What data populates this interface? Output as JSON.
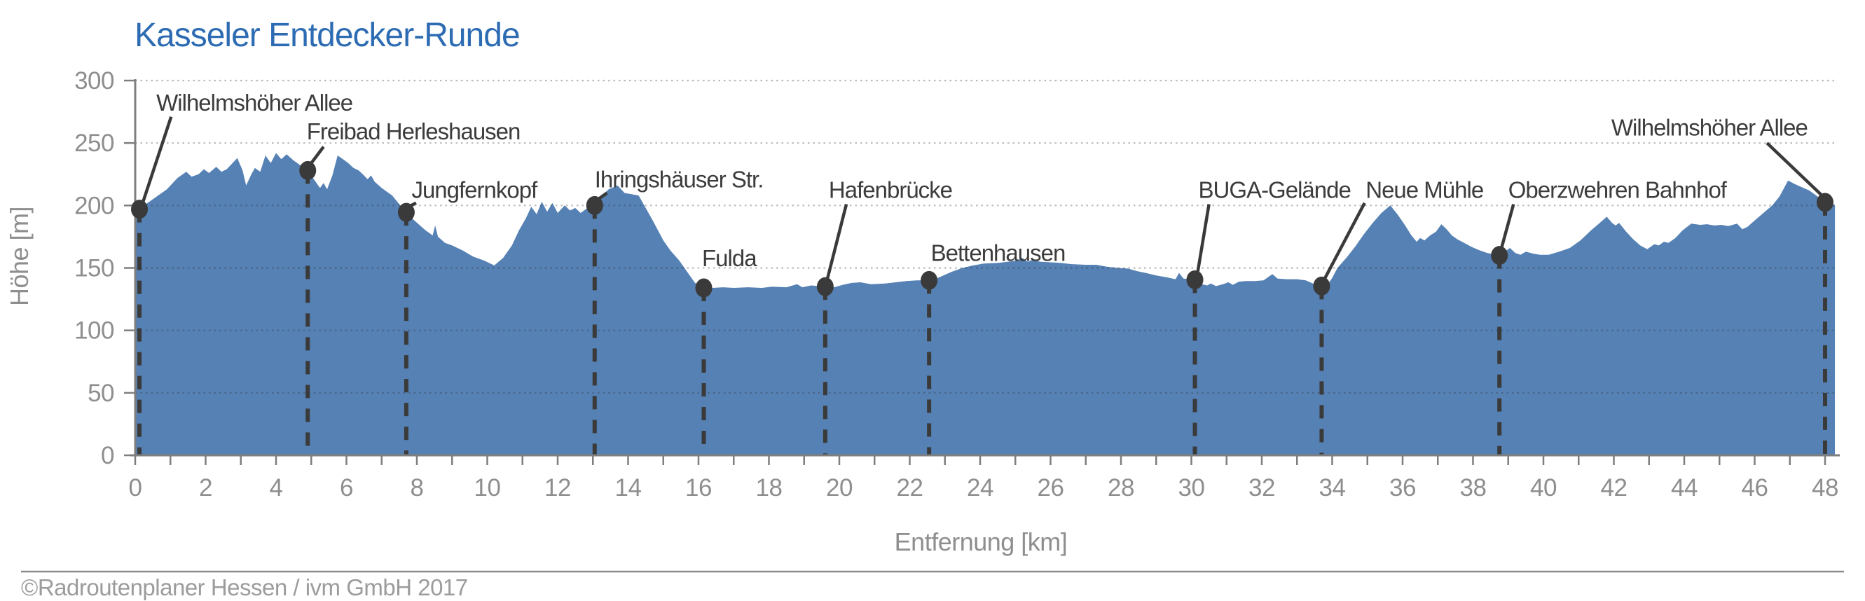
{
  "page": {
    "kind": "elevation-profile"
  },
  "footer": {
    "copyright": "©Radroutenplaner Hessen / ivm GmbH 2017"
  },
  "chart_data": {
    "type": "area",
    "title": "Kasseler Entdecker-Runde",
    "xlabel": "Entfernung [km]",
    "ylabel": "Höhe [m]",
    "xlim": [
      0,
      48.3
    ],
    "ylim": [
      0,
      300
    ],
    "x_ticks": [
      0,
      2,
      4,
      6,
      8,
      10,
      12,
      14,
      16,
      18,
      20,
      22,
      24,
      26,
      28,
      30,
      32,
      34,
      36,
      38,
      40,
      42,
      44,
      46,
      48
    ],
    "x_minor_tick_step_km": 1,
    "y_ticks": [
      0,
      50,
      100,
      150,
      200,
      250,
      300
    ],
    "grid": {
      "horizontal_dotted": true,
      "vertical": false
    },
    "legend": null,
    "colors": {
      "title": "#2d6cb3",
      "area_fill": "#5681b4",
      "annotation": "#3a3a3a",
      "axis_line": "#7e7e7e",
      "tick_label": "#8e8e8e",
      "gridline": "#b3b3b3",
      "copyright": "#9c9c9c"
    },
    "profile_km_m": [
      [
        0,
        197
      ],
      [
        0.12,
        197
      ],
      [
        0.3,
        201
      ],
      [
        0.6,
        207
      ],
      [
        0.9,
        213
      ],
      [
        1.2,
        222
      ],
      [
        1.45,
        227
      ],
      [
        1.6,
        223
      ],
      [
        1.8,
        225
      ],
      [
        1.95,
        229
      ],
      [
        2.1,
        226
      ],
      [
        2.3,
        231
      ],
      [
        2.45,
        227
      ],
      [
        2.6,
        229
      ],
      [
        2.9,
        238
      ],
      [
        3.05,
        228
      ],
      [
        3.15,
        216
      ],
      [
        3.3,
        225
      ],
      [
        3.4,
        230
      ],
      [
        3.55,
        227
      ],
      [
        3.7,
        240
      ],
      [
        3.85,
        234
      ],
      [
        4.0,
        242
      ],
      [
        4.15,
        237
      ],
      [
        4.3,
        241
      ],
      [
        4.5,
        236
      ],
      [
        4.7,
        232
      ],
      [
        4.9,
        228
      ],
      [
        5.1,
        220
      ],
      [
        5.25,
        214
      ],
      [
        5.35,
        218
      ],
      [
        5.45,
        213
      ],
      [
        5.6,
        224
      ],
      [
        5.75,
        240
      ],
      [
        5.9,
        237
      ],
      [
        6.05,
        234
      ],
      [
        6.2,
        230
      ],
      [
        6.35,
        228
      ],
      [
        6.5,
        224
      ],
      [
        6.6,
        221
      ],
      [
        6.7,
        224
      ],
      [
        6.8,
        219
      ],
      [
        7.0,
        214
      ],
      [
        7.3,
        208
      ],
      [
        7.5,
        201
      ],
      [
        7.7,
        194.5
      ],
      [
        7.85,
        190
      ],
      [
        8.05,
        185
      ],
      [
        8.25,
        180
      ],
      [
        8.45,
        176
      ],
      [
        8.52,
        184
      ],
      [
        8.6,
        175
      ],
      [
        8.8,
        170
      ],
      [
        9.0,
        168
      ],
      [
        9.3,
        164
      ],
      [
        9.6,
        159
      ],
      [
        9.9,
        156
      ],
      [
        10.2,
        152
      ],
      [
        10.45,
        158
      ],
      [
        10.7,
        168
      ],
      [
        10.9,
        180
      ],
      [
        11.1,
        190
      ],
      [
        11.25,
        199
      ],
      [
        11.4,
        193
      ],
      [
        11.55,
        203
      ],
      [
        11.7,
        195
      ],
      [
        11.85,
        202
      ],
      [
        12.0,
        194
      ],
      [
        12.2,
        200
      ],
      [
        12.35,
        196
      ],
      [
        12.5,
        198
      ],
      [
        12.65,
        194
      ],
      [
        12.85,
        198
      ],
      [
        13.05,
        200
      ],
      [
        13.25,
        208
      ],
      [
        13.45,
        213
      ],
      [
        13.7,
        216
      ],
      [
        13.9,
        210
      ],
      [
        14.1,
        209
      ],
      [
        14.3,
        208
      ],
      [
        14.5,
        198
      ],
      [
        14.7,
        188
      ],
      [
        15.0,
        172
      ],
      [
        15.2,
        164
      ],
      [
        15.45,
        156
      ],
      [
        15.7,
        146
      ],
      [
        15.9,
        138
      ],
      [
        16.15,
        134
      ],
      [
        16.4,
        134
      ],
      [
        16.7,
        134.5
      ],
      [
        17.0,
        134
      ],
      [
        17.4,
        134.5
      ],
      [
        17.8,
        134
      ],
      [
        18.1,
        135
      ],
      [
        18.5,
        134.5
      ],
      [
        18.8,
        137
      ],
      [
        18.95,
        134.5
      ],
      [
        19.2,
        136
      ],
      [
        19.6,
        135
      ],
      [
        19.85,
        134.5
      ],
      [
        20.1,
        136.5
      ],
      [
        20.35,
        138
      ],
      [
        20.6,
        138.5
      ],
      [
        20.9,
        137
      ],
      [
        21.3,
        137.5
      ],
      [
        21.6,
        138.5
      ],
      [
        21.9,
        139.5
      ],
      [
        22.2,
        140
      ],
      [
        22.55,
        140
      ],
      [
        22.8,
        142
      ],
      [
        23.0,
        144.5
      ],
      [
        23.2,
        147
      ],
      [
        23.5,
        150
      ],
      [
        23.8,
        152
      ],
      [
        24.1,
        153.5
      ],
      [
        24.5,
        154
      ],
      [
        24.8,
        155
      ],
      [
        25.05,
        156
      ],
      [
        25.2,
        158
      ],
      [
        25.35,
        155
      ],
      [
        25.5,
        156.5
      ],
      [
        25.7,
        155
      ],
      [
        26.0,
        154.5
      ],
      [
        26.3,
        154
      ],
      [
        26.6,
        153
      ],
      [
        27.0,
        152.5
      ],
      [
        27.3,
        152.5
      ],
      [
        27.6,
        151
      ],
      [
        27.9,
        150
      ],
      [
        28.2,
        149.5
      ],
      [
        28.45,
        147.5
      ],
      [
        28.7,
        146
      ],
      [
        29.0,
        144
      ],
      [
        29.3,
        142.5
      ],
      [
        29.55,
        141
      ],
      [
        29.65,
        146
      ],
      [
        29.78,
        141.5
      ],
      [
        30.1,
        140.5
      ],
      [
        30.3,
        137
      ],
      [
        30.45,
        136
      ],
      [
        30.55,
        137.5
      ],
      [
        30.7,
        135.5
      ],
      [
        30.9,
        137
      ],
      [
        31.05,
        138.5
      ],
      [
        31.18,
        136.5
      ],
      [
        31.35,
        139
      ],
      [
        31.55,
        139.5
      ],
      [
        31.8,
        139.5
      ],
      [
        32.05,
        140
      ],
      [
        32.3,
        145
      ],
      [
        32.45,
        141.5
      ],
      [
        32.7,
        141
      ],
      [
        33.0,
        141
      ],
      [
        33.25,
        140
      ],
      [
        33.5,
        137
      ],
      [
        33.7,
        135.5
      ],
      [
        33.88,
        137
      ],
      [
        34.0,
        142
      ],
      [
        34.15,
        150
      ],
      [
        34.4,
        158
      ],
      [
        34.65,
        167
      ],
      [
        34.9,
        177
      ],
      [
        35.15,
        186
      ],
      [
        35.4,
        194
      ],
      [
        35.65,
        200
      ],
      [
        35.85,
        193
      ],
      [
        36.05,
        185
      ],
      [
        36.25,
        176
      ],
      [
        36.4,
        171
      ],
      [
        36.5,
        174
      ],
      [
        36.62,
        172
      ],
      [
        36.78,
        176
      ],
      [
        36.95,
        179
      ],
      [
        37.1,
        185
      ],
      [
        37.25,
        181
      ],
      [
        37.4,
        176
      ],
      [
        37.55,
        173
      ],
      [
        37.75,
        170
      ],
      [
        37.95,
        167
      ],
      [
        38.15,
        164.5
      ],
      [
        38.4,
        162
      ],
      [
        38.75,
        160
      ],
      [
        38.9,
        163
      ],
      [
        39.05,
        166
      ],
      [
        39.2,
        162
      ],
      [
        39.35,
        160.5
      ],
      [
        39.5,
        163
      ],
      [
        39.7,
        161.5
      ],
      [
        39.9,
        160.5
      ],
      [
        40.15,
        160.5
      ],
      [
        40.45,
        163
      ],
      [
        40.75,
        166
      ],
      [
        41.05,
        172
      ],
      [
        41.35,
        180
      ],
      [
        41.6,
        186
      ],
      [
        41.8,
        191
      ],
      [
        41.95,
        186
      ],
      [
        42.05,
        184
      ],
      [
        42.15,
        186
      ],
      [
        42.35,
        179
      ],
      [
        42.55,
        173
      ],
      [
        42.75,
        168
      ],
      [
        42.95,
        165
      ],
      [
        43.15,
        169
      ],
      [
        43.28,
        168
      ],
      [
        43.42,
        171
      ],
      [
        43.55,
        170
      ],
      [
        43.75,
        174
      ],
      [
        43.95,
        180
      ],
      [
        44.2,
        185.5
      ],
      [
        44.45,
        184.5
      ],
      [
        44.65,
        185
      ],
      [
        44.85,
        184
      ],
      [
        45.05,
        184.5
      ],
      [
        45.25,
        183.5
      ],
      [
        45.5,
        185.5
      ],
      [
        45.65,
        181
      ],
      [
        45.8,
        183
      ],
      [
        46.0,
        188
      ],
      [
        46.25,
        194
      ],
      [
        46.5,
        200
      ],
      [
        46.7,
        207
      ],
      [
        46.95,
        220
      ],
      [
        47.15,
        217
      ],
      [
        47.35,
        214.5
      ],
      [
        47.55,
        212
      ],
      [
        47.75,
        208
      ],
      [
        48.0,
        202.5
      ],
      [
        48.15,
        201
      ],
      [
        48.28,
        200.5
      ]
    ],
    "stations": [
      {
        "name": "Wilhelmshöher Allee",
        "km": 0.12,
        "elevation_m": 197,
        "label_km": 0.6,
        "label_m": 276,
        "anchor": "start",
        "leader": [
          [
            1.02,
            271
          ],
          [
            0.2,
            201
          ]
        ]
      },
      {
        "name": "Freibad Herleshausen",
        "km": 4.9,
        "elevation_m": 228,
        "label_km": 4.87,
        "label_m": 253,
        "anchor": "start",
        "leader": [
          [
            5.35,
            247
          ],
          [
            4.95,
            232
          ]
        ]
      },
      {
        "name": "Jungfernkopf",
        "km": 7.7,
        "elevation_m": 194.5,
        "label_km": 7.85,
        "label_m": 206,
        "anchor": "start",
        "leader": [
          [
            7.98,
            202
          ],
          [
            7.76,
            199
          ]
        ]
      },
      {
        "name": "Ihringshäuser Str.",
        "km": 13.05,
        "elevation_m": 200,
        "label_km": 13.05,
        "label_m": 214.5,
        "anchor": "start",
        "leader": [
          [
            13.4,
            210
          ],
          [
            13.1,
            204
          ]
        ]
      },
      {
        "name": "Fulda",
        "km": 16.15,
        "elevation_m": 134,
        "label_km": 16.1,
        "label_m": 151.5,
        "anchor": "start",
        "leader": null
      },
      {
        "name": "Hafenbrücke",
        "km": 19.6,
        "elevation_m": 135,
        "label_km": 19.7,
        "label_m": 206,
        "anchor": "start",
        "leader": [
          [
            20.2,
            201
          ],
          [
            19.65,
            140
          ]
        ]
      },
      {
        "name": "Bettenhausen",
        "km": 22.55,
        "elevation_m": 140,
        "label_km": 22.6,
        "label_m": 155.5,
        "anchor": "start",
        "leader": null
      },
      {
        "name": "BUGA-Gelände",
        "km": 30.1,
        "elevation_m": 140.5,
        "label_km": 30.2,
        "label_m": 206,
        "anchor": "start",
        "leader": [
          [
            30.5,
            201
          ],
          [
            30.17,
            145
          ]
        ]
      },
      {
        "name": "Neue Mühle",
        "km": 33.7,
        "elevation_m": 135.5,
        "label_km": 34.95,
        "label_m": 206,
        "anchor": "start",
        "leader": [
          [
            34.92,
            202
          ],
          [
            33.78,
            141
          ]
        ]
      },
      {
        "name": "Oberzwehren Bahnhof",
        "km": 38.75,
        "elevation_m": 160,
        "label_km": 39.0,
        "label_m": 206,
        "anchor": "start",
        "leader": [
          [
            39.15,
            201
          ],
          [
            38.8,
            165
          ]
        ]
      },
      {
        "name": "Wilhelmshöher Allee",
        "km": 48.0,
        "elevation_m": 202.5,
        "label_km": 47.5,
        "label_m": 256,
        "anchor": "end",
        "leader": [
          [
            46.35,
            250
          ],
          [
            47.95,
            207
          ]
        ]
      }
    ]
  }
}
